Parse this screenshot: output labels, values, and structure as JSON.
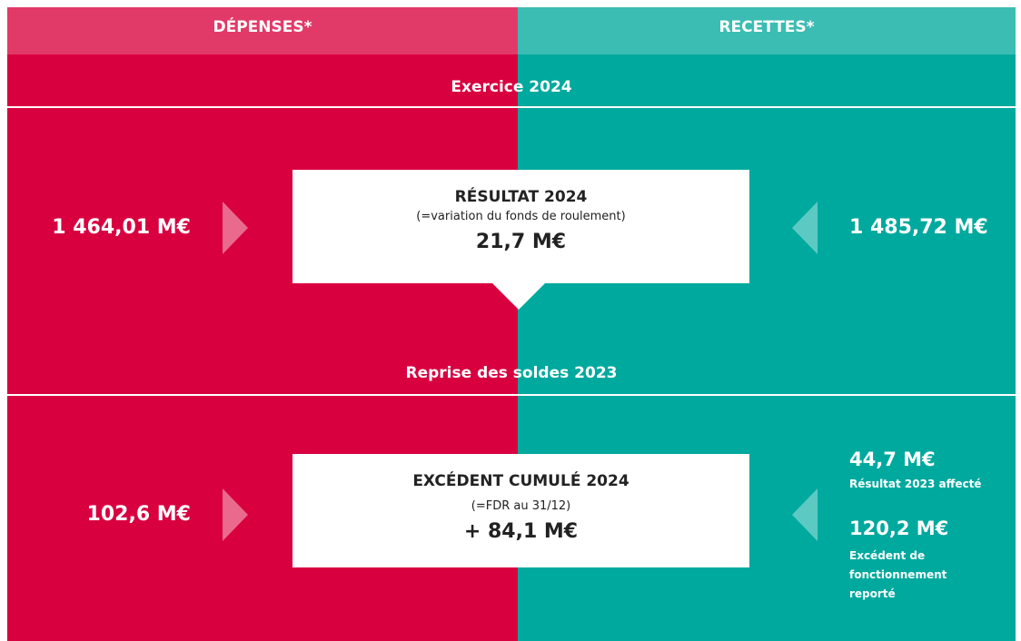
{
  "header": {
    "left": "DÉPENSES*",
    "right": "RECETTES*"
  },
  "section1": {
    "title": "Exercice 2024",
    "left_value": "1 464,01 M€",
    "right_value": "1 485,72 M€",
    "box": {
      "title": "RÉSULTAT 2024",
      "subtitle": "(=variation du fonds de roulement)",
      "value": "21,7 M€"
    }
  },
  "section2": {
    "title": "Reprise des soldes 2023",
    "left_value": "102,6 M€",
    "right_items": [
      {
        "value": "44,7 M€",
        "label": "Résultat 2023 affecté"
      },
      {
        "value": "120,2 M€",
        "label": "Excédent de fonctionnement reporté"
      }
    ],
    "box": {
      "title": "EXCÉDENT CUMULÉ 2024",
      "subtitle": "(=FDR au 31/12)",
      "value": "+ 84,1 M€"
    }
  }
}
